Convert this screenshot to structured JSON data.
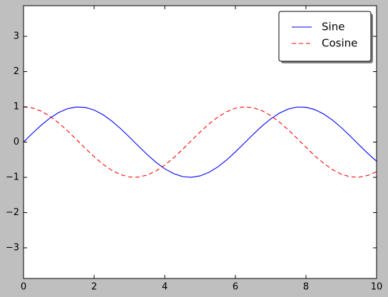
{
  "chart_data": {
    "type": "line",
    "x": [
      0,
      0.25,
      0.5,
      0.75,
      1,
      1.25,
      1.5,
      1.75,
      2,
      2.25,
      2.5,
      2.75,
      3,
      3.25,
      3.5,
      3.75,
      4,
      4.25,
      4.5,
      4.75,
      5,
      5.25,
      5.5,
      5.75,
      6,
      6.25,
      6.5,
      6.75,
      7,
      7.25,
      7.5,
      7.75,
      8,
      8.25,
      8.5,
      8.75,
      9,
      9.25,
      9.5,
      9.75,
      10
    ],
    "series": [
      {
        "name": "Sine",
        "color": "#0000ff",
        "dash": "solid",
        "values": [
          0,
          0.247,
          0.479,
          0.682,
          0.841,
          0.949,
          0.997,
          0.984,
          0.909,
          0.778,
          0.598,
          0.382,
          0.141,
          -0.108,
          -0.351,
          -0.572,
          -0.757,
          -0.895,
          -0.978,
          -0.999,
          -0.959,
          -0.859,
          -0.706,
          -0.51,
          -0.279,
          -0.033,
          0.215,
          0.451,
          0.657,
          0.823,
          0.938,
          0.995,
          0.989,
          0.921,
          0.798,
          0.625,
          0.412,
          0.174,
          -0.075,
          -0.319,
          -0.544
        ]
      },
      {
        "name": "Cosine",
        "color": "#ff0000",
        "dash": "dashed",
        "values": [
          1,
          0.969,
          0.878,
          0.732,
          0.54,
          0.315,
          0.071,
          -0.178,
          -0.416,
          -0.628,
          -0.801,
          -0.924,
          -0.99,
          -0.994,
          -0.936,
          -0.82,
          -0.654,
          -0.446,
          -0.211,
          0.038,
          0.284,
          0.512,
          0.709,
          0.861,
          0.96,
          1,
          0.977,
          0.893,
          0.754,
          0.568,
          0.347,
          0.104,
          -0.146,
          -0.39,
          -0.602,
          -0.78,
          -0.911,
          -0.985,
          -0.997,
          -0.947,
          -0.839
        ]
      }
    ],
    "xlim": [
      0,
      10
    ],
    "xticks": [
      0,
      2,
      4,
      6,
      8,
      10
    ],
    "ylim": [
      -3.87,
      3.87
    ],
    "yticks": [
      {
        "value": -3,
        "label": "−3"
      },
      {
        "value": -2,
        "label": "−2"
      },
      {
        "value": -1,
        "label": "−1"
      },
      0,
      1,
      2,
      3
    ],
    "grid": false,
    "legend": "upper right"
  }
}
